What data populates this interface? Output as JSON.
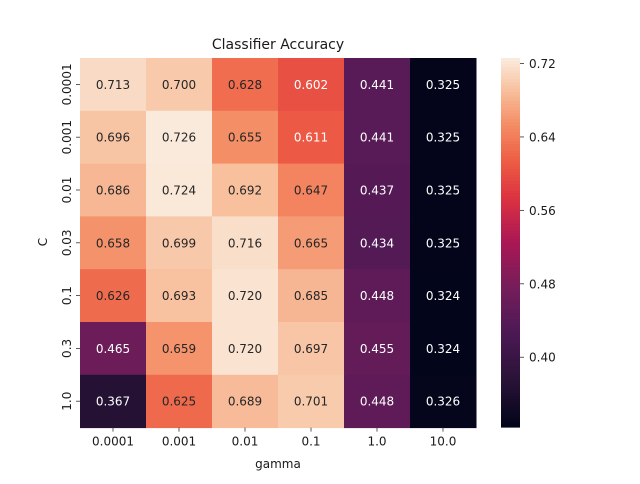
{
  "chart_data": {
    "type": "heatmap",
    "title": "Classifier Accuracy",
    "xlabel": "gamma",
    "ylabel": "C",
    "x_categories": [
      "0.0001",
      "0.001",
      "0.01",
      "0.1",
      "1.0",
      "10.0"
    ],
    "y_categories": [
      "0.0001",
      "0.001",
      "0.01",
      "0.03",
      "0.1",
      "0.3",
      "1.0"
    ],
    "values": [
      [
        0.713,
        0.7,
        0.628,
        0.602,
        0.441,
        0.325
      ],
      [
        0.696,
        0.726,
        0.655,
        0.611,
        0.441,
        0.325
      ],
      [
        0.686,
        0.724,
        0.692,
        0.647,
        0.437,
        0.325
      ],
      [
        0.658,
        0.699,
        0.716,
        0.665,
        0.434,
        0.325
      ],
      [
        0.626,
        0.693,
        0.72,
        0.685,
        0.448,
        0.324
      ],
      [
        0.465,
        0.659,
        0.72,
        0.697,
        0.455,
        0.324
      ],
      [
        0.367,
        0.625,
        0.689,
        0.701,
        0.448,
        0.326
      ]
    ],
    "value_format": "0.000",
    "color_range": [
      0.324,
      0.726
    ],
    "colorbar_ticks": [
      "0.40",
      "0.48",
      "0.56",
      "0.64",
      "0.72"
    ],
    "colormap": "rocket"
  }
}
